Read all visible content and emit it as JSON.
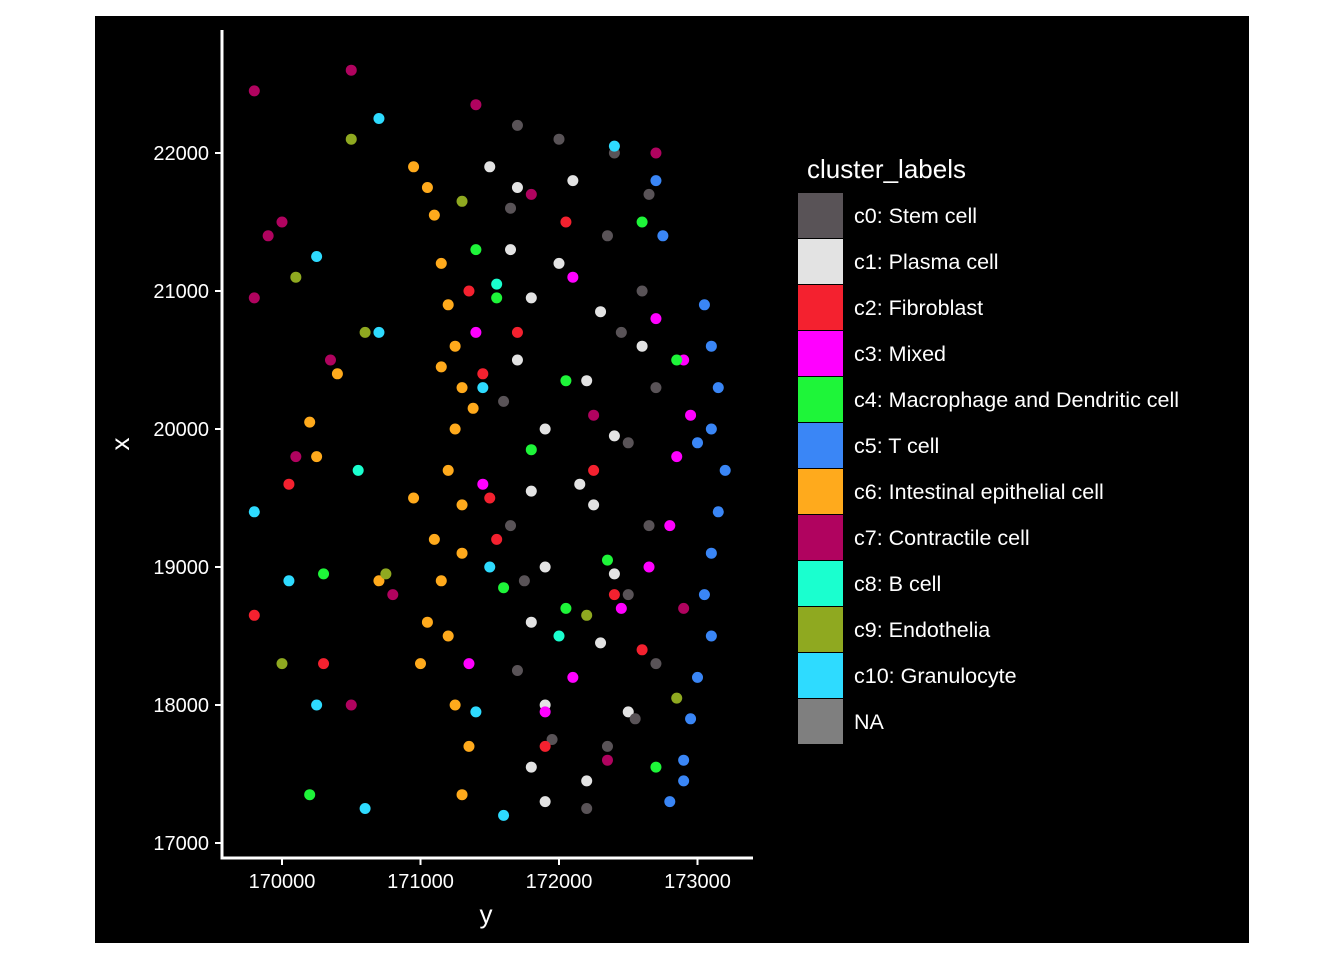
{
  "chart_data": {
    "type": "scatter",
    "title": "",
    "xlabel": "y",
    "ylabel": "x",
    "xlim": [
      169600,
      173500
    ],
    "ylim": [
      16930,
      22850
    ],
    "x_ticks": [
      170000,
      171000,
      172000,
      173000
    ],
    "y_ticks": [
      17000,
      18000,
      19000,
      20000,
      21000,
      22000
    ],
    "x_tick_labels": [
      "170000",
      "171000",
      "172000",
      "173000"
    ],
    "y_tick_labels": [
      "17000",
      "18000",
      "19000",
      "20000",
      "21000",
      "22000"
    ],
    "background": "#000000",
    "grid": false,
    "legend": {
      "title": "cluster_labels",
      "position": "right",
      "entries": [
        {
          "label": "c0: Stem cell",
          "color": "#595357"
        },
        {
          "label": "c1: Plasma cell",
          "color": "#E3E3E3"
        },
        {
          "label": "c2: Fibroblast",
          "color": "#F4212F"
        },
        {
          "label": "c3: Mixed",
          "color": "#FF00FF"
        },
        {
          "label": "c4: Macrophage and Dendritic cell",
          "color": "#1EF539"
        },
        {
          "label": "c5: T cell",
          "color": "#3A86F6"
        },
        {
          "label": "c6: Intestinal epithelial cell",
          "color": "#FFAA1C"
        },
        {
          "label": "c7: Contractile cell",
          "color": "#B0035F"
        },
        {
          "label": "c8: B cell",
          "color": "#1AFFCF"
        },
        {
          "label": "c9: Endothelia",
          "color": "#8FA920"
        },
        {
          "label": "c10: Granulocyte",
          "color": "#2EDBFF"
        },
        {
          "label": "NA",
          "color": "#7F7F7F"
        }
      ]
    },
    "series": [
      {
        "cluster": "c6",
        "points": [
          [
            170950,
            21900
          ],
          [
            171050,
            21750
          ],
          [
            171100,
            21550
          ],
          [
            171150,
            21200
          ],
          [
            171200,
            20900
          ],
          [
            171250,
            20600
          ],
          [
            171300,
            20300
          ],
          [
            171250,
            20000
          ],
          [
            171200,
            19700
          ],
          [
            171300,
            19450
          ],
          [
            171100,
            19200
          ],
          [
            171150,
            18900
          ],
          [
            171050,
            18600
          ],
          [
            171000,
            18300
          ],
          [
            171250,
            18000
          ],
          [
            171350,
            17700
          ],
          [
            171300,
            17350
          ],
          [
            170200,
            20050
          ],
          [
            170250,
            19800
          ],
          [
            170700,
            18900
          ],
          [
            170400,
            20400
          ],
          [
            170950,
            19500
          ],
          [
            171200,
            18500
          ],
          [
            171300,
            19100
          ],
          [
            171150,
            20450
          ],
          [
            171380,
            20150
          ]
        ]
      },
      {
        "cluster": "c1",
        "points": [
          [
            171500,
            21900
          ],
          [
            171700,
            21750
          ],
          [
            172100,
            21800
          ],
          [
            171650,
            21300
          ],
          [
            172000,
            21200
          ],
          [
            171800,
            20950
          ],
          [
            172300,
            20850
          ],
          [
            171700,
            20500
          ],
          [
            172200,
            20350
          ],
          [
            171900,
            20000
          ],
          [
            172400,
            19950
          ],
          [
            171800,
            19550
          ],
          [
            172250,
            19450
          ],
          [
            171900,
            19000
          ],
          [
            172400,
            18950
          ],
          [
            171800,
            18600
          ],
          [
            172300,
            18450
          ],
          [
            171900,
            18000
          ],
          [
            172500,
            17950
          ],
          [
            171800,
            17550
          ],
          [
            172200,
            17450
          ],
          [
            171900,
            17300
          ],
          [
            172600,
            20600
          ],
          [
            172150,
            19600
          ]
        ]
      },
      {
        "cluster": "c0",
        "points": [
          [
            171700,
            22200
          ],
          [
            172000,
            22100
          ],
          [
            172400,
            22000
          ],
          [
            172650,
            21700
          ],
          [
            172350,
            21400
          ],
          [
            172600,
            21000
          ],
          [
            172450,
            20700
          ],
          [
            172700,
            20300
          ],
          [
            172500,
            19900
          ],
          [
            172650,
            19300
          ],
          [
            172500,
            18800
          ],
          [
            172700,
            18300
          ],
          [
            172550,
            17900
          ],
          [
            172350,
            17700
          ],
          [
            171950,
            17750
          ],
          [
            171700,
            18250
          ],
          [
            171650,
            19300
          ],
          [
            171600,
            20200
          ],
          [
            171650,
            21600
          ],
          [
            172200,
            17250
          ],
          [
            171750,
            18900
          ]
        ]
      },
      {
        "cluster": "c5",
        "points": [
          [
            173050,
            20900
          ],
          [
            173100,
            20600
          ],
          [
            173150,
            20300
          ],
          [
            173100,
            20000
          ],
          [
            173200,
            19700
          ],
          [
            173150,
            19400
          ],
          [
            173100,
            19100
          ],
          [
            173050,
            18800
          ],
          [
            173100,
            18500
          ],
          [
            173000,
            18200
          ],
          [
            172950,
            17900
          ],
          [
            172900,
            17600
          ],
          [
            172800,
            17300
          ],
          [
            172750,
            21400
          ],
          [
            172700,
            21800
          ],
          [
            172900,
            17450
          ],
          [
            173000,
            19900
          ]
        ]
      },
      {
        "cluster": "c3",
        "points": [
          [
            172900,
            20500
          ],
          [
            172950,
            20100
          ],
          [
            172850,
            19800
          ],
          [
            172800,
            19300
          ],
          [
            172650,
            19000
          ],
          [
            172450,
            18700
          ],
          [
            172100,
            18200
          ],
          [
            171400,
            20700
          ],
          [
            171450,
            19600
          ],
          [
            171350,
            18300
          ],
          [
            172100,
            21100
          ],
          [
            171900,
            17950
          ],
          [
            172700,
            20800
          ]
        ]
      },
      {
        "cluster": "c2",
        "points": [
          [
            171500,
            19500
          ],
          [
            171550,
            19200
          ],
          [
            171450,
            20400
          ],
          [
            172050,
            21500
          ],
          [
            172400,
            18800
          ],
          [
            171700,
            20700
          ],
          [
            172250,
            19700
          ],
          [
            171900,
            17700
          ],
          [
            170050,
            19600
          ],
          [
            170300,
            18300
          ],
          [
            169800,
            18650
          ],
          [
            171350,
            21000
          ],
          [
            172600,
            18400
          ]
        ]
      },
      {
        "cluster": "c4",
        "points": [
          [
            171400,
            21300
          ],
          [
            171550,
            20950
          ],
          [
            172050,
            20350
          ],
          [
            171800,
            19850
          ],
          [
            172350,
            19050
          ],
          [
            172050,
            18700
          ],
          [
            171600,
            18850
          ],
          [
            172700,
            17550
          ],
          [
            172600,
            21500
          ],
          [
            170300,
            18950
          ],
          [
            170200,
            17350
          ],
          [
            172850,
            20500
          ]
        ]
      },
      {
        "cluster": "c7",
        "points": [
          [
            169800,
            22450
          ],
          [
            170500,
            22600
          ],
          [
            169900,
            21400
          ],
          [
            170000,
            21500
          ],
          [
            169800,
            20950
          ],
          [
            170350,
            20500
          ],
          [
            170100,
            19800
          ],
          [
            170500,
            18000
          ],
          [
            170800,
            18800
          ],
          [
            171400,
            22350
          ],
          [
            172700,
            22000
          ],
          [
            172900,
            18700
          ],
          [
            172350,
            17600
          ],
          [
            171800,
            21700
          ],
          [
            172250,
            20100
          ]
        ]
      },
      {
        "cluster": "c10",
        "points": [
          [
            170700,
            22250
          ],
          [
            170250,
            21250
          ],
          [
            169800,
            19400
          ],
          [
            170050,
            18900
          ],
          [
            170600,
            17250
          ],
          [
            170250,
            18000
          ],
          [
            171400,
            17950
          ],
          [
            171500,
            19000
          ],
          [
            171450,
            20300
          ],
          [
            172400,
            22050
          ],
          [
            171600,
            17200
          ],
          [
            170700,
            20700
          ]
        ]
      },
      {
        "cluster": "c9",
        "points": [
          [
            170500,
            22100
          ],
          [
            170600,
            20700
          ],
          [
            170750,
            18950
          ],
          [
            170000,
            18300
          ],
          [
            172850,
            18050
          ],
          [
            171300,
            21650
          ],
          [
            172200,
            18650
          ],
          [
            170100,
            21100
          ]
        ]
      },
      {
        "cluster": "c8",
        "points": [
          [
            171550,
            21050
          ],
          [
            172000,
            18500
          ],
          [
            170550,
            19700
          ]
        ]
      }
    ]
  }
}
